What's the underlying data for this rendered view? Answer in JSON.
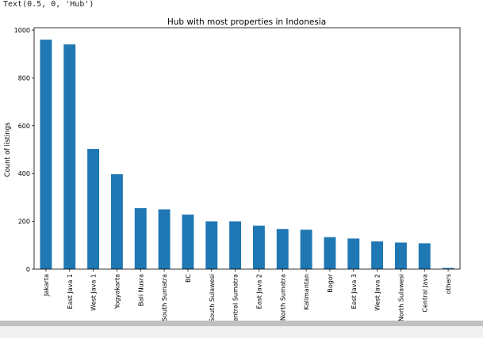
{
  "output": {
    "text": "Text(0.5, 0, 'Hub')"
  },
  "colors": {
    "bar": "#1f77b4",
    "axis": "#000000"
  },
  "chart_data": {
    "type": "bar",
    "title": "Hub with most properties in Indonesia",
    "xlabel": "",
    "ylabel": "Count of listings",
    "ylim": [
      0,
      1010
    ],
    "yticks": [
      0,
      200,
      400,
      600,
      800,
      1000
    ],
    "grid": false,
    "categories": [
      "Jakarta",
      "East Java 1",
      "West Java 1",
      "Yogyakarta",
      "Bali Nusra",
      "South Sumatra",
      "BC",
      "South Sulawesi",
      "Central Sumatra",
      "East Java 2",
      "North Sumatra",
      "Kalimantan",
      "Bogor",
      "East Java 3",
      "West Java 2",
      "North Sulawesi",
      "Central Java",
      "others"
    ],
    "values": [
      960,
      940,
      503,
      397,
      255,
      250,
      228,
      200,
      200,
      182,
      168,
      165,
      134,
      128,
      116,
      111,
      108,
      5
    ]
  }
}
